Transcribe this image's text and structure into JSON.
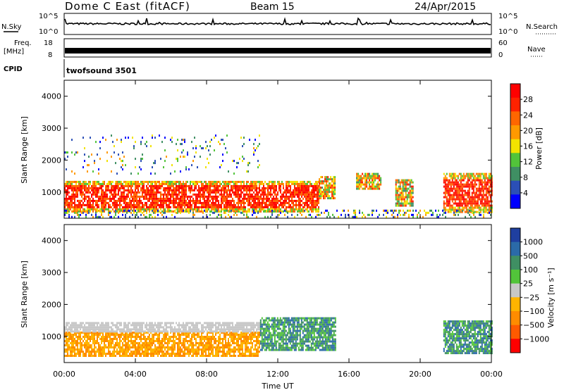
{
  "header": {
    "title": "Dome C East (fitACF)",
    "beam": "Beam 15",
    "date": "24/Apr/2015"
  },
  "nsky_panel": {
    "left_label": "N.Sky",
    "left_ticks": [
      "10^5",
      "10^0"
    ],
    "right_label": "N.Search",
    "right_ticks": [
      "10^5",
      "10^0"
    ]
  },
  "freq_panel": {
    "left_label_1": "Freq.",
    "left_label_2": "[MHz]",
    "left_ticks": [
      "18",
      "8"
    ],
    "right_label": "Nave",
    "right_ticks": [
      "60",
      "0"
    ]
  },
  "cpid": {
    "label": "CPID",
    "value": "twofsound 3501"
  },
  "colors": {
    "power": [
      "#0000ff",
      "#2b4fb6",
      "#3f8f63",
      "#52c43a",
      "#f2e300",
      "#ff9900",
      "#ff6600",
      "#ff2200",
      "#ff0000"
    ],
    "velocity": [
      "#ff0000",
      "#ff5a00",
      "#ff8c00",
      "#ffb400",
      "#c8c8c8",
      "#52c43a",
      "#3f8f63",
      "#2b6aa8",
      "#1f3fa0"
    ]
  },
  "chart_data": [
    {
      "type": "heatmap",
      "name": "power",
      "ylabel": "Slant Range [km]",
      "xlabel": "",
      "x_ticks": [
        "00:00",
        "04:00",
        "08:00",
        "12:00",
        "16:00",
        "20:00",
        "00:00"
      ],
      "y_ticks": [
        "1000",
        "2000",
        "3000",
        "4000"
      ],
      "y_tick_values": [
        1000,
        2000,
        3000,
        4000
      ],
      "xlim": [
        0,
        24
      ],
      "ylim": [
        180,
        4500
      ],
      "colorbar": {
        "label": "Power [dB]",
        "ticks": [
          "4",
          "8",
          "12",
          "16",
          "20",
          "24",
          "28"
        ],
        "range": [
          0,
          32
        ]
      },
      "echo_regions": [
        {
          "t": [
            0,
            14.3
          ],
          "r": [
            400,
            1350
          ],
          "level": "high"
        },
        {
          "t": [
            14.3,
            15.2
          ],
          "r": [
            800,
            1500
          ],
          "level": "mid"
        },
        {
          "t": [
            16.4,
            17.8
          ],
          "r": [
            1100,
            1600
          ],
          "level": "mid"
        },
        {
          "t": [
            18.6,
            19.6
          ],
          "r": [
            600,
            1400
          ],
          "level": "mid"
        },
        {
          "t": [
            21.3,
            24
          ],
          "r": [
            400,
            1600
          ],
          "level": "high"
        },
        {
          "t": [
            0,
            11
          ],
          "r": [
            1600,
            2800
          ],
          "level": "scatter"
        },
        {
          "t": [
            0,
            24
          ],
          "r": [
            200,
            450
          ],
          "level": "ground"
        }
      ]
    },
    {
      "type": "heatmap",
      "name": "velocity",
      "ylabel": "Slant Range [km]",
      "xlabel": "Time UT",
      "x_ticks": [
        "00:00",
        "04:00",
        "08:00",
        "12:00",
        "16:00",
        "20:00",
        "00:00"
      ],
      "y_ticks": [
        "1000",
        "2000",
        "3000",
        "4000"
      ],
      "y_tick_values": [
        1000,
        2000,
        3000,
        4000
      ],
      "xlim": [
        0,
        24
      ],
      "ylim": [
        180,
        4500
      ],
      "colorbar": {
        "label": "Velocity [m s⁻¹]",
        "ticks": [
          "1000",
          "500",
          "100",
          "25",
          "−25",
          "−100",
          "−500",
          "−1000"
        ],
        "range": [
          -1200,
          1200
        ]
      },
      "echo_regions": [
        {
          "t": [
            0,
            11
          ],
          "r": [
            400,
            1150
          ],
          "level": "negative"
        },
        {
          "t": [
            0,
            11
          ],
          "r": [
            1150,
            1450
          ],
          "level": "near-zero"
        },
        {
          "t": [
            11,
            15.2
          ],
          "r": [
            600,
            1600
          ],
          "level": "positive"
        },
        {
          "t": [
            21.3,
            24
          ],
          "r": [
            500,
            1500
          ],
          "level": "positive"
        }
      ]
    }
  ]
}
